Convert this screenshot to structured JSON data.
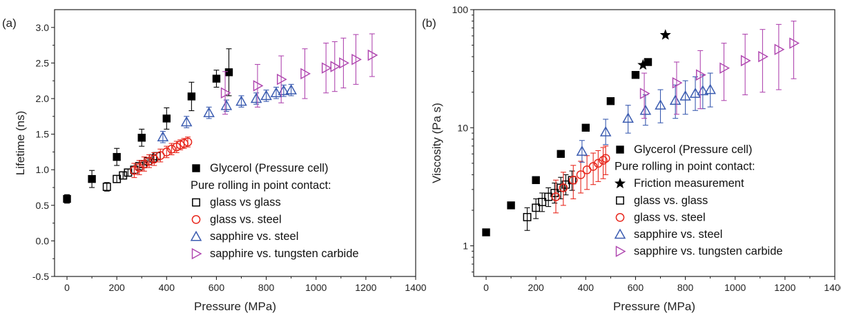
{
  "chart_data": [
    {
      "type": "scatter",
      "panel_label": "(a)",
      "xlabel": "Pressure (MPa)",
      "ylabel": "Lifetime (ns)",
      "xlim": [
        -50,
        1400
      ],
      "ylim": [
        -0.5,
        3.25
      ],
      "yscale": "linear",
      "x_ticks": [
        0,
        200,
        400,
        600,
        800,
        1000,
        1200,
        1400
      ],
      "x_tick_labels": [
        "0",
        "200",
        "400",
        "600",
        "800",
        "1000",
        "1200",
        "1400"
      ],
      "y_ticks": [
        -0.5,
        0.0,
        0.5,
        1.0,
        1.5,
        2.0,
        2.5,
        3.0
      ],
      "y_tick_labels": [
        "-0.5",
        "0.0",
        "0.5",
        "1.0",
        "1.5",
        "2.0",
        "2.5",
        "3.0"
      ],
      "legend_placement": "lower-right",
      "legend_header": "Pure rolling in point contact:",
      "series": [
        {
          "name": "Glycerol (Pressure cell)",
          "marker": "filled-square",
          "color": "#000000",
          "points": [
            {
              "x": 0,
              "y": 0.59,
              "e": 0.06
            },
            {
              "x": 100,
              "y": 0.87,
              "e": 0.12
            },
            {
              "x": 200,
              "y": 1.18,
              "e": 0.12
            },
            {
              "x": 300,
              "y": 1.45,
              "e": 0.12
            },
            {
              "x": 400,
              "y": 1.72,
              "e": 0.15
            },
            {
              "x": 500,
              "y": 2.03,
              "e": 0.2
            },
            {
              "x": 600,
              "y": 2.28,
              "e": 0.12
            },
            {
              "x": 650,
              "y": 2.37,
              "e": 0.33
            }
          ]
        },
        {
          "name": "glass vs glass",
          "marker": "open-square",
          "color": "#000000",
          "points": [
            {
              "x": 160,
              "y": 0.76,
              "e": 0.06
            },
            {
              "x": 200,
              "y": 0.87,
              "e": 0.05
            },
            {
              "x": 225,
              "y": 0.92,
              "e": 0.05
            },
            {
              "x": 245,
              "y": 0.96,
              "e": 0.05
            },
            {
              "x": 270,
              "y": 1.0,
              "e": 0.05
            },
            {
              "x": 290,
              "y": 1.05,
              "e": 0.05
            },
            {
              "x": 305,
              "y": 1.08,
              "e": 0.05
            },
            {
              "x": 325,
              "y": 1.12,
              "e": 0.05
            },
            {
              "x": 345,
              "y": 1.16,
              "e": 0.05
            },
            {
              "x": 360,
              "y": 1.19,
              "e": 0.05
            }
          ]
        },
        {
          "name": "glass vs. steel",
          "marker": "open-circle",
          "color": "#e8281e",
          "points": [
            {
              "x": 270,
              "y": 0.99,
              "e": 0.1
            },
            {
              "x": 290,
              "y": 1.03,
              "e": 0.1
            },
            {
              "x": 310,
              "y": 1.08,
              "e": 0.1
            },
            {
              "x": 330,
              "y": 1.12,
              "e": 0.09
            },
            {
              "x": 350,
              "y": 1.15,
              "e": 0.09
            },
            {
              "x": 375,
              "y": 1.2,
              "e": 0.09
            },
            {
              "x": 400,
              "y": 1.25,
              "e": 0.08
            },
            {
              "x": 420,
              "y": 1.29,
              "e": 0.08
            },
            {
              "x": 440,
              "y": 1.32,
              "e": 0.08
            },
            {
              "x": 455,
              "y": 1.35,
              "e": 0.07
            },
            {
              "x": 470,
              "y": 1.37,
              "e": 0.07
            },
            {
              "x": 485,
              "y": 1.39,
              "e": 0.07
            }
          ]
        },
        {
          "name": "sapphire vs. steel",
          "marker": "open-triangle-up",
          "color": "#3a5bb0",
          "points": [
            {
              "x": 385,
              "y": 1.46,
              "e": 0.08
            },
            {
              "x": 480,
              "y": 1.67,
              "e": 0.08
            },
            {
              "x": 570,
              "y": 1.8,
              "e": 0.08
            },
            {
              "x": 640,
              "y": 1.9,
              "e": 0.08
            },
            {
              "x": 700,
              "y": 1.96,
              "e": 0.08
            },
            {
              "x": 760,
              "y": 2.0,
              "e": 0.08
            },
            {
              "x": 800,
              "y": 2.04,
              "e": 0.08
            },
            {
              "x": 840,
              "y": 2.08,
              "e": 0.08
            },
            {
              "x": 870,
              "y": 2.11,
              "e": 0.08
            },
            {
              "x": 900,
              "y": 2.12,
              "e": 0.08
            }
          ]
        },
        {
          "name": "sapphire vs. tungsten carbide",
          "marker": "open-triangle-right",
          "color": "#b048b0",
          "points": [
            {
              "x": 635,
              "y": 2.08,
              "e": 0.3
            },
            {
              "x": 765,
              "y": 2.18,
              "e": 0.3
            },
            {
              "x": 860,
              "y": 2.27,
              "e": 0.33
            },
            {
              "x": 955,
              "y": 2.35,
              "e": 0.35
            },
            {
              "x": 1040,
              "y": 2.43,
              "e": 0.35
            },
            {
              "x": 1075,
              "y": 2.45,
              "e": 0.35
            },
            {
              "x": 1110,
              "y": 2.5,
              "e": 0.35
            },
            {
              "x": 1160,
              "y": 2.55,
              "e": 0.35
            },
            {
              "x": 1225,
              "y": 2.61,
              "e": 0.3
            }
          ]
        }
      ]
    },
    {
      "type": "scatter",
      "panel_label": "(b)",
      "xlabel": "Pressure (MPa)",
      "ylabel": "Viscosity (Pa s)",
      "xlim": [
        -50,
        1400
      ],
      "ylim": [
        0.55,
        100
      ],
      "yscale": "log",
      "x_ticks": [
        0,
        200,
        400,
        600,
        800,
        1000,
        1200,
        1400
      ],
      "x_tick_labels": [
        "0",
        "200",
        "400",
        "600",
        "800",
        "1000",
        "1200",
        "1400"
      ],
      "y_ticks": [
        1,
        10,
        100
      ],
      "y_tick_labels": [
        "1",
        "10",
        "100"
      ],
      "legend_placement": "lower-right",
      "legend_header": "Pure rolling in point contact:",
      "series": [
        {
          "name": "Glycerol (Pressure cell)",
          "marker": "filled-square",
          "color": "#000000",
          "points": [
            {
              "x": 0,
              "y": 1.3
            },
            {
              "x": 100,
              "y": 2.2
            },
            {
              "x": 200,
              "y": 3.6
            },
            {
              "x": 300,
              "y": 6.0
            },
            {
              "x": 400,
              "y": 10.0
            },
            {
              "x": 500,
              "y": 16.8
            },
            {
              "x": 600,
              "y": 28.0
            },
            {
              "x": 650,
              "y": 36.0
            }
          ]
        },
        {
          "name": "Friction measurement",
          "marker": "filled-star",
          "color": "#000000",
          "points": [
            {
              "x": 630,
              "y": 34.0
            },
            {
              "x": 720,
              "y": 61.0
            }
          ]
        },
        {
          "name": "glass vs. glass",
          "marker": "open-square",
          "color": "#000000",
          "points": [
            {
              "x": 165,
              "y": 1.75,
              "elo": 1.35,
              "ehi": 2.1
            },
            {
              "x": 200,
              "y": 2.1,
              "elo": 1.7,
              "ehi": 2.5
            },
            {
              "x": 225,
              "y": 2.35,
              "elo": 1.95,
              "ehi": 2.8
            },
            {
              "x": 250,
              "y": 2.6,
              "elo": 2.15,
              "ehi": 3.1
            },
            {
              "x": 275,
              "y": 2.8,
              "elo": 2.3,
              "ehi": 3.4
            },
            {
              "x": 300,
              "y": 3.1,
              "elo": 2.5,
              "ehi": 3.8
            },
            {
              "x": 320,
              "y": 3.3,
              "elo": 2.7,
              "ehi": 4.0
            },
            {
              "x": 345,
              "y": 3.6,
              "elo": 2.95,
              "ehi": 4.3
            }
          ]
        },
        {
          "name": "glass vs. steel",
          "marker": "open-circle",
          "color": "#e8281e",
          "points": [
            {
              "x": 280,
              "y": 2.6,
              "elo": 1.9,
              "ehi": 3.6
            },
            {
              "x": 310,
              "y": 3.1,
              "elo": 2.2,
              "ehi": 4.2
            },
            {
              "x": 350,
              "y": 3.6,
              "elo": 2.5,
              "ehi": 4.8
            },
            {
              "x": 380,
              "y": 4.0,
              "elo": 2.8,
              "ehi": 5.2
            },
            {
              "x": 405,
              "y": 4.4,
              "elo": 3.0,
              "ehi": 5.8
            },
            {
              "x": 430,
              "y": 4.7,
              "elo": 3.3,
              "ehi": 6.1
            },
            {
              "x": 450,
              "y": 5.0,
              "elo": 3.5,
              "ehi": 6.4
            },
            {
              "x": 470,
              "y": 5.3,
              "elo": 3.7,
              "ehi": 6.8
            },
            {
              "x": 480,
              "y": 5.5,
              "elo": 4.0,
              "ehi": 7.0
            }
          ]
        },
        {
          "name": "sapphire vs. steel",
          "marker": "open-triangle-up",
          "color": "#3a5bb0",
          "points": [
            {
              "x": 385,
              "y": 6.3,
              "elo": 5.1,
              "ehi": 7.8
            },
            {
              "x": 480,
              "y": 9.2,
              "elo": 7.2,
              "ehi": 11.8
            },
            {
              "x": 570,
              "y": 12.0,
              "elo": 9.0,
              "ehi": 15.5
            },
            {
              "x": 640,
              "y": 14.0,
              "elo": 10.5,
              "ehi": 19.0
            },
            {
              "x": 700,
              "y": 15.5,
              "elo": 11.0,
              "ehi": 21.0
            },
            {
              "x": 760,
              "y": 17.0,
              "elo": 12.0,
              "ehi": 23.0
            },
            {
              "x": 800,
              "y": 18.5,
              "elo": 13.0,
              "ehi": 25.0
            },
            {
              "x": 840,
              "y": 19.5,
              "elo": 14.0,
              "ehi": 27.0
            },
            {
              "x": 870,
              "y": 20.5,
              "elo": 14.5,
              "ehi": 28.0
            },
            {
              "x": 900,
              "y": 21.0,
              "elo": 15.0,
              "ehi": 29.0
            }
          ]
        },
        {
          "name": "sapphire vs. tungsten carbide",
          "marker": "open-triangle-right",
          "color": "#b048b0",
          "points": [
            {
              "x": 635,
              "y": 19.5,
              "elo": 12.0,
              "ehi": 29.0
            },
            {
              "x": 765,
              "y": 24.0,
              "elo": 13.0,
              "ehi": 36.0
            },
            {
              "x": 860,
              "y": 28.0,
              "elo": 14.5,
              "ehi": 45.0
            },
            {
              "x": 955,
              "y": 32.0,
              "elo": 17.0,
              "ehi": 52.0
            },
            {
              "x": 1040,
              "y": 37.0,
              "elo": 19.0,
              "ehi": 62.0
            },
            {
              "x": 1110,
              "y": 40.0,
              "elo": 20.0,
              "ehi": 68.0
            },
            {
              "x": 1175,
              "y": 46.0,
              "elo": 21.0,
              "ehi": 75.0
            },
            {
              "x": 1235,
              "y": 52.0,
              "elo": 26.0,
              "ehi": 80.0
            }
          ]
        }
      ]
    }
  ]
}
